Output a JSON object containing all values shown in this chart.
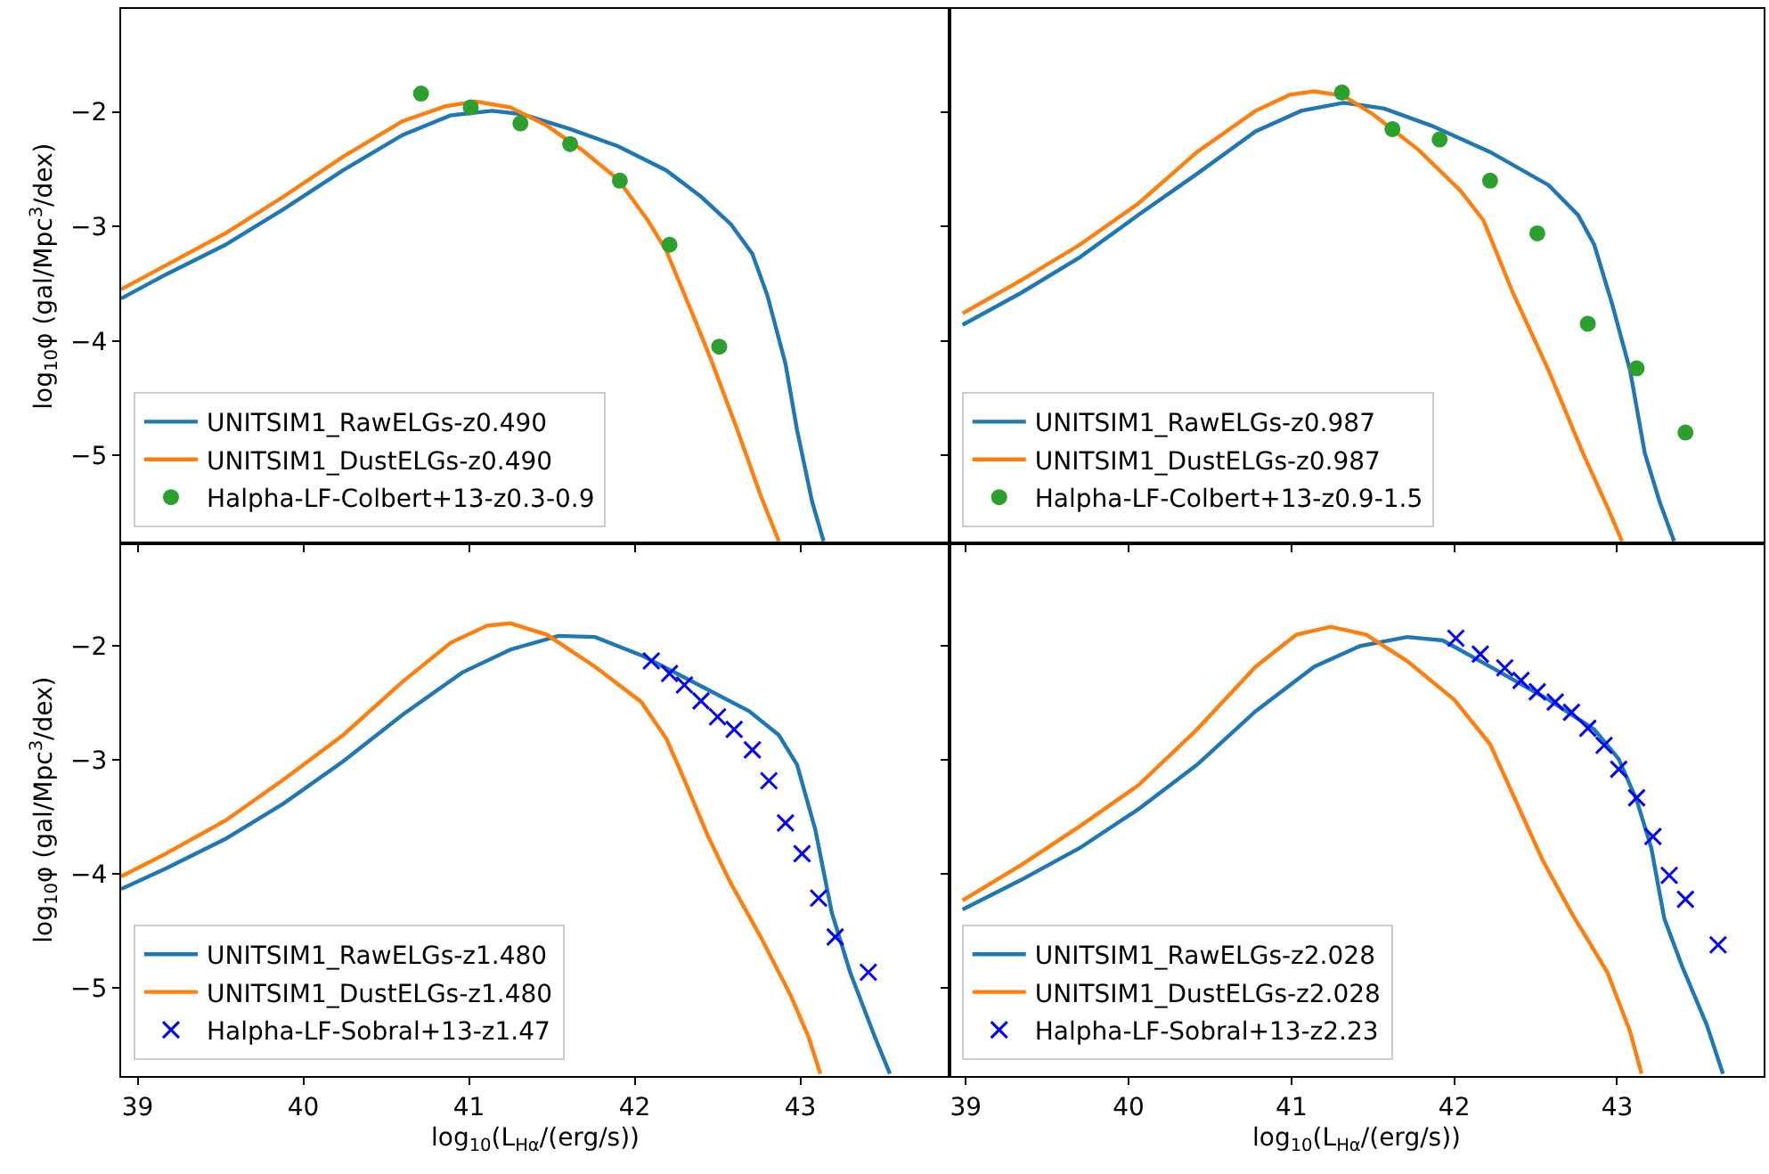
{
  "chart_data": [
    {
      "type": "line",
      "ylabel": "log$_{10}$φ (gal/Mpc$^{3}$/dex)",
      "xlim": [
        38.9,
        43.9
      ],
      "ylim": [
        -5.77,
        -1.1
      ],
      "xticks": [
        39,
        40,
        41,
        42,
        43
      ],
      "yticks": [
        {
          "value": -2,
          "label": "−2"
        },
        {
          "value": -3,
          "label": "−3"
        },
        {
          "value": -4,
          "label": "−4"
        },
        {
          "value": -5,
          "label": "−5"
        }
      ],
      "tick_labels": "y",
      "legend": "bottom left",
      "series": [
        {
          "name": "UNITSIM1_RawELGs-z0.490",
          "color": "#1f77b4",
          "marker": "none",
          "x": [
            38.9,
            39.17,
            39.53,
            39.88,
            40.24,
            40.6,
            40.89,
            41.14,
            41.32,
            41.61,
            41.9,
            42.19,
            42.4,
            42.58,
            42.71,
            42.8,
            42.91,
            42.98,
            43.07,
            43.14
          ],
          "values": [
            -3.63,
            -3.42,
            -3.16,
            -2.85,
            -2.51,
            -2.2,
            -2.03,
            -1.99,
            -2.02,
            -2.15,
            -2.3,
            -2.51,
            -2.74,
            -2.98,
            -3.24,
            -3.6,
            -4.2,
            -4.78,
            -5.4,
            -5.75
          ]
        },
        {
          "name": "UNITSIM1_DustELGs-z0.490",
          "color": "#ff7f0e",
          "marker": "none",
          "x": [
            38.9,
            39.17,
            39.53,
            39.88,
            40.24,
            40.6,
            40.86,
            41.04,
            41.25,
            41.47,
            41.68,
            41.9,
            42.08,
            42.19,
            42.37,
            42.47,
            42.62,
            42.76,
            42.87
          ],
          "values": [
            -3.55,
            -3.34,
            -3.06,
            -2.74,
            -2.39,
            -2.08,
            -1.95,
            -1.91,
            -1.96,
            -2.12,
            -2.33,
            -2.59,
            -2.95,
            -3.21,
            -3.84,
            -4.2,
            -4.78,
            -5.35,
            -5.75
          ]
        },
        {
          "name": "Halpha-LF-Colbert+13-z0.3-0.9",
          "color": "#2ca02c",
          "type": "scatter",
          "marker": "circle",
          "x": [
            40.71,
            41.01,
            41.31,
            41.61,
            41.91,
            42.21,
            42.51
          ],
          "values": [
            -1.84,
            -1.96,
            -2.1,
            -2.28,
            -2.6,
            -3.16,
            -4.05
          ]
        }
      ]
    },
    {
      "type": "line",
      "xlim": [
        38.9,
        43.9
      ],
      "ylim": [
        -5.77,
        -1.1
      ],
      "xticks": [
        39,
        40,
        41,
        42,
        43
      ],
      "yticks": [
        {
          "value": -2,
          "label": null
        },
        {
          "value": -3,
          "label": null
        },
        {
          "value": -4,
          "label": null
        },
        {
          "value": -5,
          "label": null
        }
      ],
      "tick_labels": false,
      "legend": "bottom left",
      "series": [
        {
          "name": "UNITSIM1_RawELGs-z0.987",
          "color": "#1f77b4",
          "marker": "none",
          "x": [
            38.98,
            39.34,
            39.7,
            40.06,
            40.42,
            40.78,
            41.06,
            41.32,
            41.57,
            41.86,
            42.22,
            42.58,
            42.76,
            42.86,
            42.97,
            43.08,
            43.17,
            43.26,
            43.35
          ],
          "values": [
            -3.86,
            -3.58,
            -3.27,
            -2.9,
            -2.54,
            -2.17,
            -1.99,
            -1.92,
            -1.97,
            -2.12,
            -2.35,
            -2.64,
            -2.9,
            -3.16,
            -3.68,
            -4.26,
            -4.98,
            -5.4,
            -5.75
          ]
        },
        {
          "name": "UNITSIM1_DustELGs-z0.987",
          "color": "#ff7f0e",
          "marker": "none",
          "x": [
            38.98,
            39.34,
            39.7,
            40.06,
            40.42,
            40.78,
            40.99,
            41.14,
            41.32,
            41.5,
            41.78,
            42.04,
            42.18,
            42.36,
            42.58,
            42.79,
            42.94,
            43.03
          ],
          "values": [
            -3.76,
            -3.47,
            -3.16,
            -2.8,
            -2.35,
            -1.99,
            -1.85,
            -1.82,
            -1.86,
            -2.02,
            -2.33,
            -2.69,
            -2.95,
            -3.58,
            -4.26,
            -4.98,
            -5.45,
            -5.75
          ]
        },
        {
          "name": "Halpha-LF-Colbert+13-z0.9-1.5",
          "color": "#2ca02c",
          "type": "scatter",
          "marker": "circle",
          "x": [
            41.31,
            41.62,
            41.91,
            42.22,
            42.51,
            42.82,
            43.12,
            43.42
          ],
          "values": [
            -1.83,
            -2.15,
            -2.24,
            -2.6,
            -3.06,
            -3.85,
            -4.24,
            -4.8
          ]
        }
      ]
    },
    {
      "type": "line",
      "xlabel": "log$_{10}$(L$_{Hα}$/(erg/s))",
      "ylabel": "log$_{10}$φ (gal/Mpc$^{3}$/dex)",
      "xlim": [
        38.9,
        43.9
      ],
      "ylim": [
        -5.77,
        -1.1
      ],
      "xticks": [
        39,
        40,
        41,
        42,
        43
      ],
      "yticks": [
        {
          "value": -2,
          "label": "−2"
        },
        {
          "value": -3,
          "label": "−3"
        },
        {
          "value": -4,
          "label": "−4"
        },
        {
          "value": -5,
          "label": "−5"
        }
      ],
      "legend": "bottom left",
      "series": [
        {
          "name": "UNITSIM1_RawELGs-z1.480",
          "color": "#1f77b4",
          "marker": "none",
          "x": [
            38.9,
            39.17,
            39.53,
            39.88,
            40.24,
            40.6,
            40.96,
            41.25,
            41.54,
            41.76,
            42.04,
            42.4,
            42.69,
            42.87,
            42.98,
            43.09,
            43.19,
            43.3,
            43.45,
            43.54
          ],
          "values": [
            -4.13,
            -3.95,
            -3.69,
            -3.38,
            -3.01,
            -2.6,
            -2.23,
            -2.03,
            -1.91,
            -1.92,
            -2.08,
            -2.35,
            -2.57,
            -2.78,
            -3.04,
            -3.61,
            -4.34,
            -4.86,
            -5.43,
            -5.75
          ]
        },
        {
          "name": "UNITSIM1_DustELGs-z1.480",
          "color": "#ff7f0e",
          "marker": "none",
          "x": [
            38.9,
            39.17,
            39.53,
            39.88,
            40.24,
            40.6,
            40.89,
            41.11,
            41.25,
            41.47,
            41.76,
            42.04,
            42.19,
            42.29,
            42.44,
            42.58,
            42.76,
            42.94,
            43.05,
            43.12
          ],
          "values": [
            -4.02,
            -3.82,
            -3.53,
            -3.17,
            -2.78,
            -2.31,
            -1.97,
            -1.82,
            -1.8,
            -1.9,
            -2.18,
            -2.49,
            -2.81,
            -3.14,
            -3.66,
            -4.08,
            -4.55,
            -5.06,
            -5.43,
            -5.75
          ]
        },
        {
          "name": "Halpha-LF-Sobral+13-z1.47",
          "color": "#0000ff",
          "type": "scatter",
          "marker": "cross",
          "x": [
            42.1,
            42.21,
            42.3,
            42.4,
            42.5,
            42.6,
            42.71,
            42.81,
            42.91,
            43.01,
            43.11,
            43.21,
            43.41
          ],
          "values": [
            -2.13,
            -2.24,
            -2.34,
            -2.48,
            -2.62,
            -2.73,
            -2.91,
            -3.18,
            -3.55,
            -3.82,
            -4.21,
            -4.55,
            -4.86
          ]
        }
      ]
    },
    {
      "type": "line",
      "xlabel": "log$_{10}$(L$_{Hα}$/(erg/s))",
      "xlim": [
        38.9,
        43.9
      ],
      "ylim": [
        -5.77,
        -1.1
      ],
      "xticks": [
        39,
        40,
        41,
        42,
        43
      ],
      "yticks": [
        {
          "value": -2,
          "label": null
        },
        {
          "value": -3,
          "label": null
        },
        {
          "value": -4,
          "label": null
        },
        {
          "value": -5,
          "label": null
        }
      ],
      "tick_labels": "x",
      "legend": "bottom left",
      "series": [
        {
          "name": "UNITSIM1_RawELGs-z2.028",
          "color": "#1f77b4",
          "marker": "none",
          "x": [
            38.98,
            39.34,
            39.7,
            40.06,
            40.42,
            40.78,
            41.14,
            41.42,
            41.71,
            41.93,
            42.22,
            42.58,
            42.86,
            43.01,
            43.12,
            43.21,
            43.29,
            43.4,
            43.55,
            43.65
          ],
          "values": [
            -4.31,
            -4.05,
            -3.77,
            -3.43,
            -3.04,
            -2.57,
            -2.18,
            -2.0,
            -1.92,
            -1.95,
            -2.18,
            -2.47,
            -2.73,
            -2.99,
            -3.35,
            -3.77,
            -4.39,
            -4.81,
            -5.32,
            -5.75
          ]
        },
        {
          "name": "UNITSIM1_DustELGs-z2.028",
          "color": "#ff7f0e",
          "marker": "none",
          "x": [
            38.98,
            39.34,
            39.7,
            40.06,
            40.42,
            40.78,
            41.03,
            41.24,
            41.46,
            41.71,
            42.0,
            42.22,
            42.36,
            42.54,
            42.72,
            42.94,
            43.08,
            43.15
          ],
          "values": [
            -4.23,
            -3.92,
            -3.58,
            -3.22,
            -2.73,
            -2.18,
            -1.9,
            -1.83,
            -1.9,
            -2.13,
            -2.47,
            -2.86,
            -3.3,
            -3.87,
            -4.34,
            -4.86,
            -5.38,
            -5.75
          ]
        },
        {
          "name": "Halpha-LF-Sobral+13-z2.23",
          "color": "#0000ff",
          "type": "scatter",
          "marker": "cross",
          "x": [
            42.01,
            42.16,
            42.31,
            42.41,
            42.51,
            42.62,
            42.72,
            42.82,
            42.92,
            43.01,
            43.12,
            43.22,
            43.32,
            43.42,
            43.62
          ],
          "values": [
            -1.93,
            -2.07,
            -2.19,
            -2.3,
            -2.4,
            -2.49,
            -2.58,
            -2.72,
            -2.87,
            -3.08,
            -3.33,
            -3.67,
            -4.01,
            -4.22,
            -4.62
          ]
        }
      ]
    }
  ]
}
